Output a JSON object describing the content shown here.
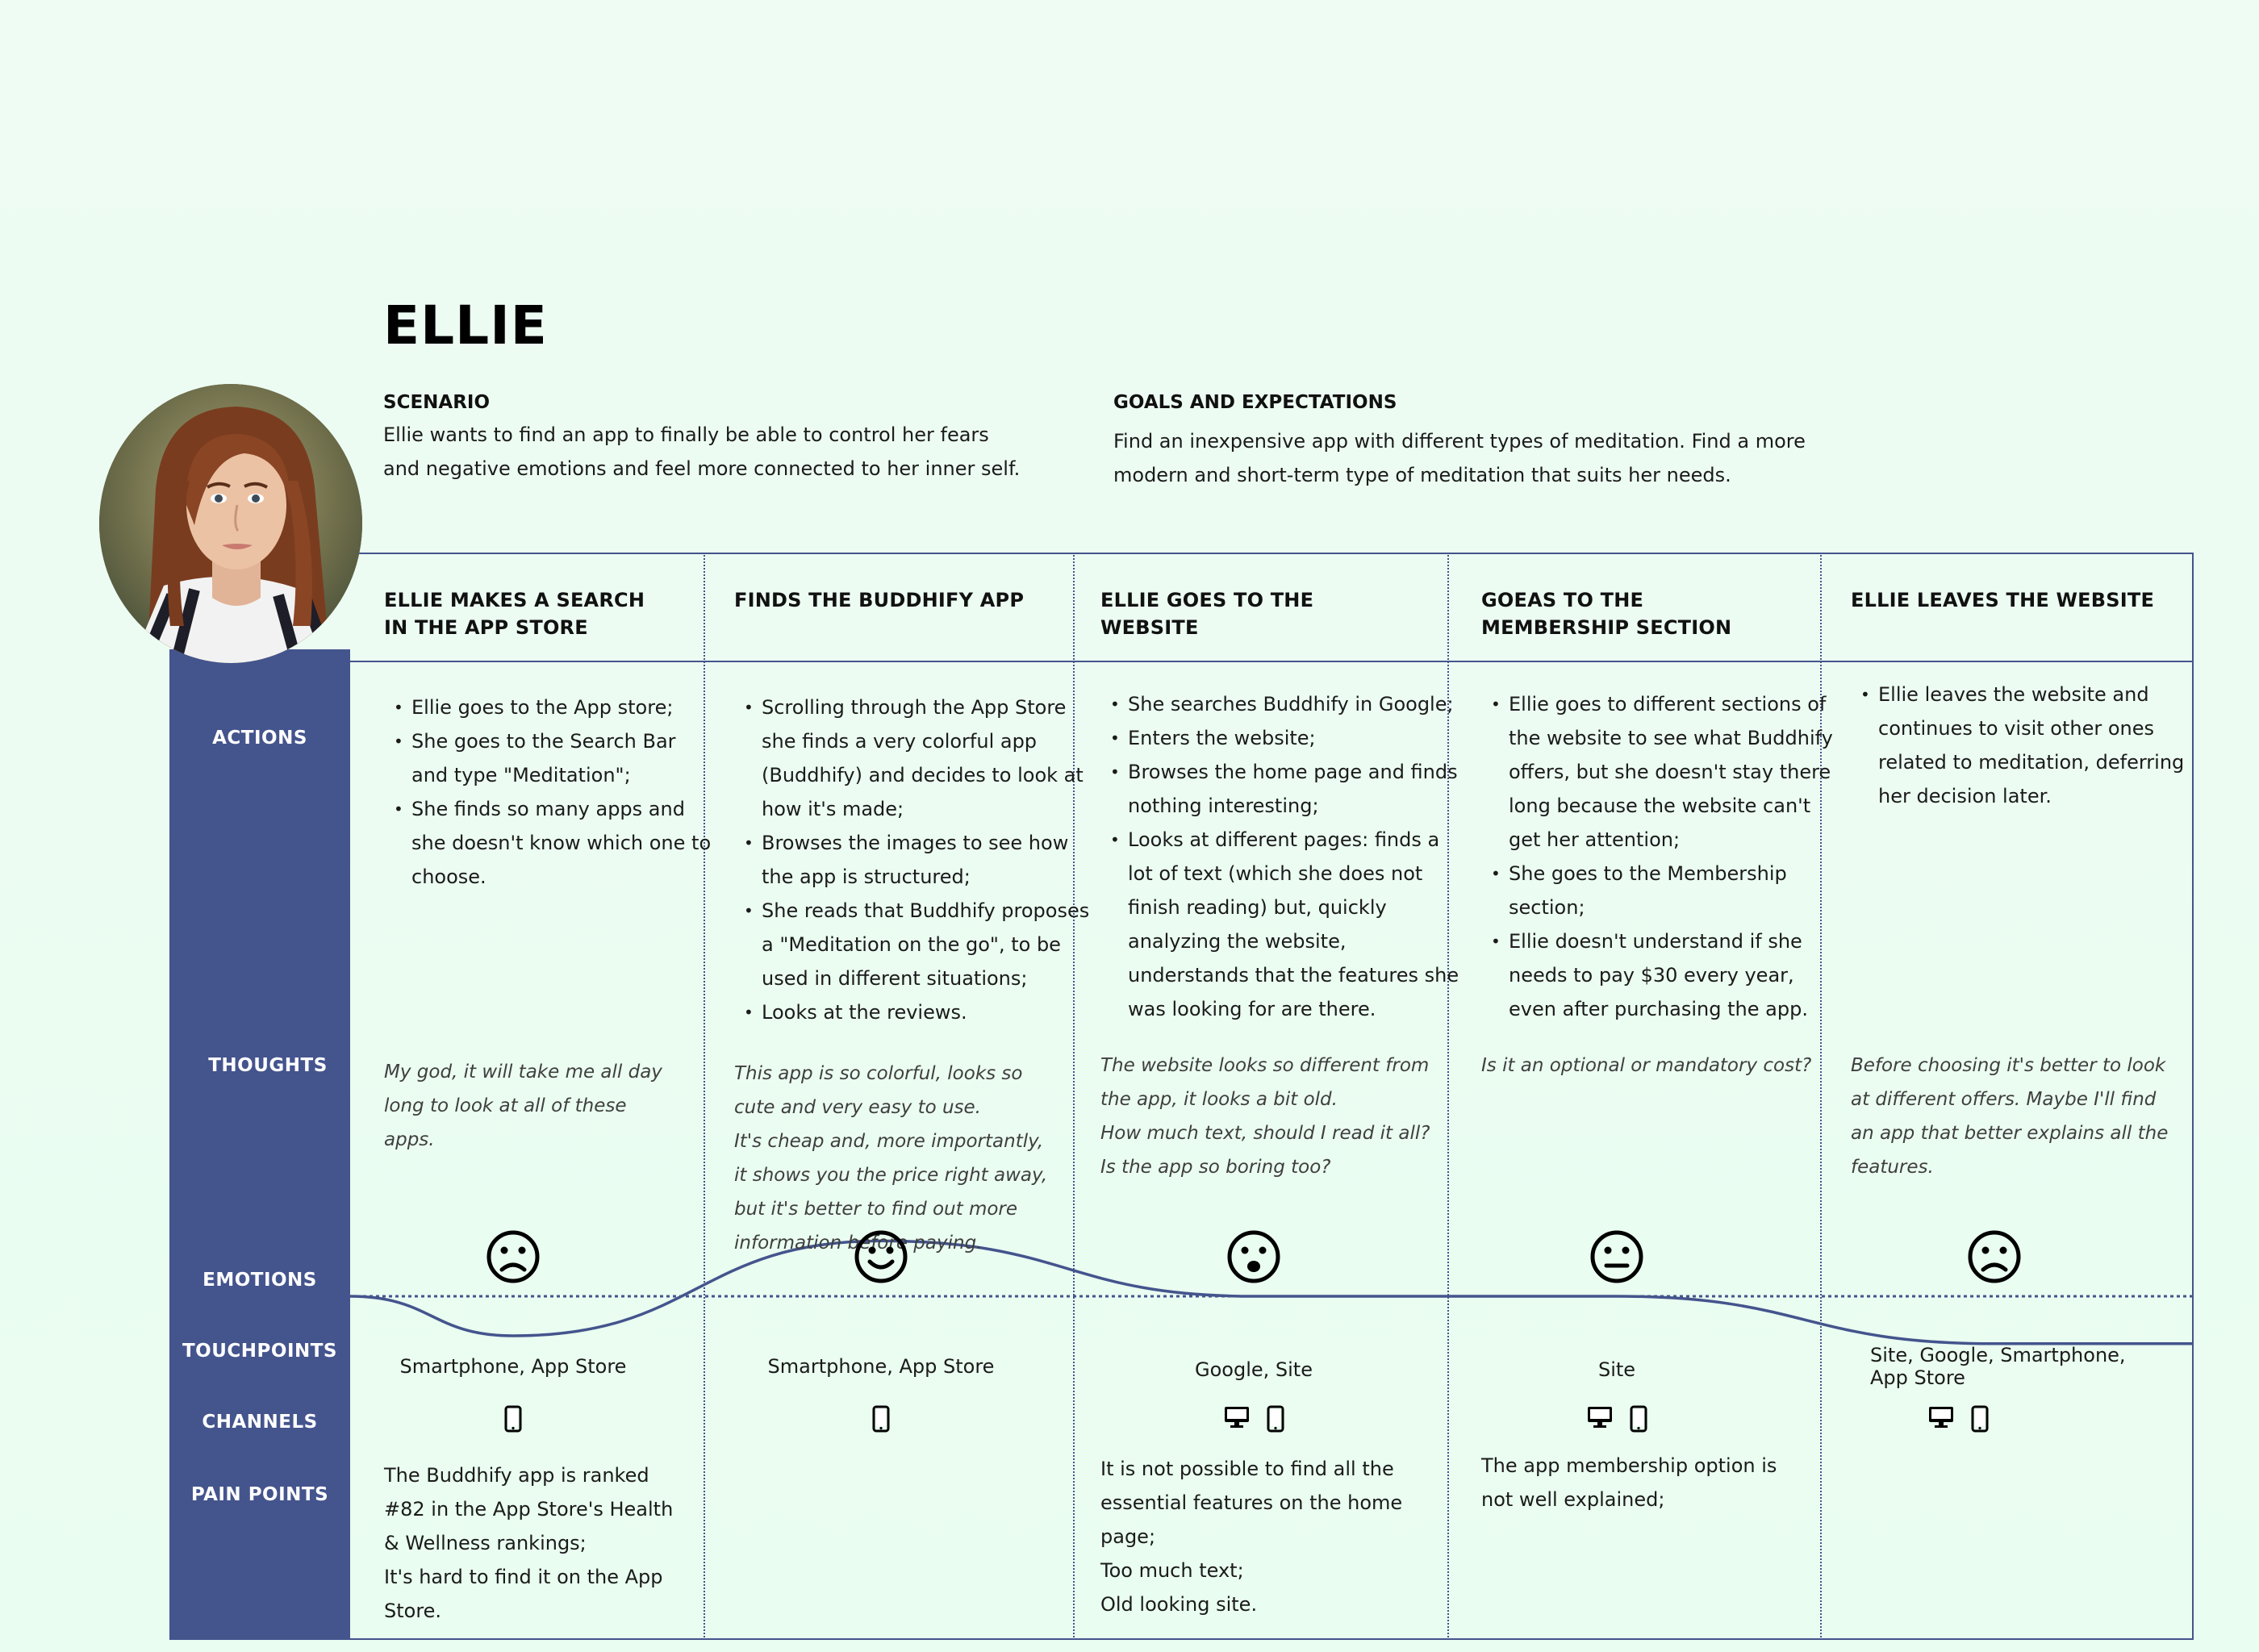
{
  "persona": {
    "name": "ELLIE",
    "scenario_title": "SCENARIO",
    "scenario_text": "Ellie wants to find an app to finally be able to control her fears and negative emotions and feel more connected to her inner self.",
    "goals_title": "GOALS AND EXPECTATIONS",
    "goals_text": "Find an inexpensive app with different types of meditation. Find a more modern and short-term type of meditation that suits her needs."
  },
  "row_labels": {
    "actions": "ACTIONS",
    "thoughts": "THOUGHTS",
    "emotions": "EMOTIONS",
    "touchpoints": "TOUCHPOINTS",
    "channels": "CHANNELS",
    "pain_points": "PAIN POINTS"
  },
  "colors": {
    "primary": "#44548d",
    "background": "#eefcf3"
  },
  "stages": [
    {
      "title": "ELLIE MAKES A SEARCH IN THE APP STORE",
      "actions": [
        "Ellie goes to the App store;",
        "She goes to the Search Bar and type \"Meditation\";",
        "She finds so many apps and she doesn't know which one to choose."
      ],
      "thoughts": [
        "My god, it will take me all day long to look at all of these apps."
      ],
      "emotion": "sad",
      "emotion_level": 0.25,
      "touchpoints": "Smartphone, App Store",
      "channels": [
        "smartphone-icon"
      ],
      "pain_points": [
        "The Buddhify app is ranked #82 in the App Store's Health & Wellness rankings;",
        "It's hard to find it on the App Store."
      ]
    },
    {
      "title": "FINDS THE BUDDHIFY APP",
      "actions": [
        "Scrolling through the App Store she finds a very colorful app (Buddhify) and decides to look at how it's made;",
        "Browses the images to see how the app is structured;",
        "She reads that Buddhify proposes a \"Meditation on the go\", to be used in different situations;",
        "Looks at the reviews."
      ],
      "thoughts": [
        "This app is so colorful, looks so cute and very easy to use.",
        "It's cheap and, more importantly, it shows you the price right away, but it's better to find out more information before paying."
      ],
      "emotion": "happy",
      "emotion_level": 0.85,
      "touchpoints": "Smartphone, App Store",
      "channels": [
        "smartphone-icon"
      ],
      "pain_points": []
    },
    {
      "title": "ELLIE GOES TO THE WEBSITE",
      "actions": [
        "She searches Buddhify in Google;",
        "Enters the website;",
        "Browses the home page and finds nothing interesting;",
        "Looks at different pages: finds a lot of text (which she does not finish reading) but, quickly analyzing the website, understands that the features she was looking for are there."
      ],
      "thoughts": [
        "The website looks so different from the app, it looks a bit old.",
        "How much text, should I read it all?",
        "Is the app so boring too?"
      ],
      "emotion": "surprised",
      "emotion_level": 0.5,
      "touchpoints": "Google, Site",
      "channels": [
        "desktop-icon",
        "smartphone-icon"
      ],
      "pain_points": [
        "It is not possible to find all the essential features on the home page;",
        "Too much text;",
        "Old looking site."
      ]
    },
    {
      "title": "GOEAS TO THE MEMBERSHIP SECTION",
      "actions": [
        "Ellie goes to different sections of the website to see what Buddhify offers, but she doesn't stay there long because the website can't get her attention;",
        "She goes to the Membership section;",
        "Ellie doesn't understand if she needs to pay $30 every year, even after purchasing the app."
      ],
      "thoughts": [
        "Is it an optional or mandatory cost?"
      ],
      "emotion": "neutral",
      "emotion_level": 0.5,
      "touchpoints": "Site",
      "channels": [
        "desktop-icon",
        "smartphone-icon"
      ],
      "pain_points": [
        "The app membership option is not well explained;"
      ]
    },
    {
      "title": "ELLIE LEAVES THE WEBSITE",
      "actions": [
        "Ellie leaves the website and continues to visit other ones related to meditation, deferring her decision later."
      ],
      "thoughts": [
        "Before choosing it's better to look at different offers. Maybe I'll find an app that better explains all the features."
      ],
      "emotion": "sad",
      "emotion_level": 0.2,
      "touchpoints": "Site, Google, Smartphone, App Store",
      "channels": [
        "desktop-icon",
        "smartphone-icon"
      ],
      "pain_points": []
    }
  ]
}
